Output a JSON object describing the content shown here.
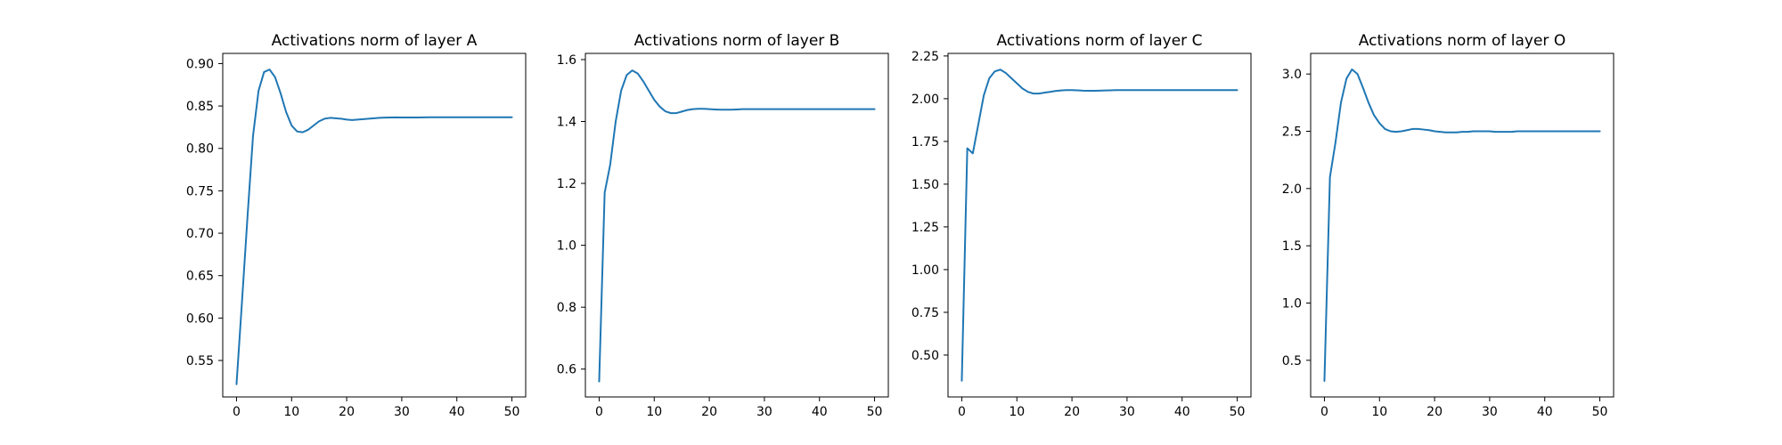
{
  "chart_data": [
    {
      "type": "line",
      "title": "Activations norm of layer A",
      "xlabel": "",
      "ylabel": "",
      "xlim": [
        -2.5,
        52.5
      ],
      "ylim": [
        0.507,
        0.912
      ],
      "xticks": [
        0,
        10,
        20,
        30,
        40,
        50
      ],
      "yticks": [
        0.55,
        0.6,
        0.65,
        0.7,
        0.75,
        0.8,
        0.85,
        0.9
      ],
      "ytick_labels": [
        "0.55",
        "0.60",
        "0.65",
        "0.70",
        "0.75",
        "0.80",
        "0.85",
        "0.90"
      ],
      "grid": false,
      "series": [
        {
          "color": "#1f77b4",
          "x": [
            0,
            1,
            2,
            3,
            4,
            5,
            6,
            7,
            8,
            9,
            10,
            11,
            12,
            13,
            14,
            15,
            16,
            17,
            18,
            19,
            20,
            21,
            22,
            23,
            24,
            25,
            26,
            27,
            28,
            29,
            30,
            31,
            32,
            33,
            34,
            35,
            36,
            37,
            38,
            39,
            40,
            41,
            42,
            43,
            44,
            45,
            46,
            47,
            48,
            49,
            50
          ],
          "y": [
            0.522,
            0.62,
            0.72,
            0.815,
            0.868,
            0.89,
            0.893,
            0.884,
            0.865,
            0.843,
            0.827,
            0.82,
            0.819,
            0.822,
            0.827,
            0.832,
            0.835,
            0.836,
            0.8355,
            0.835,
            0.834,
            0.8335,
            0.834,
            0.8345,
            0.835,
            0.8355,
            0.836,
            0.8363,
            0.8365,
            0.8366,
            0.8365,
            0.8364,
            0.8364,
            0.8365,
            0.8366,
            0.8367,
            0.8367,
            0.8367,
            0.8367,
            0.8367,
            0.8367,
            0.8367,
            0.8367,
            0.8367,
            0.8367,
            0.8367,
            0.8367,
            0.8367,
            0.8367,
            0.8367,
            0.8367
          ]
        }
      ]
    },
    {
      "type": "line",
      "title": "Activations norm of layer B",
      "xlabel": "",
      "ylabel": "",
      "xlim": [
        -2.5,
        52.5
      ],
      "ylim": [
        0.51,
        1.62
      ],
      "xticks": [
        0,
        10,
        20,
        30,
        40,
        50
      ],
      "yticks": [
        0.6,
        0.8,
        1.0,
        1.2,
        1.4,
        1.6
      ],
      "ytick_labels": [
        "0.6",
        "0.8",
        "1.0",
        "1.2",
        "1.4",
        "1.6"
      ],
      "grid": false,
      "series": [
        {
          "color": "#1f77b4",
          "x": [
            0,
            1,
            2,
            3,
            4,
            5,
            6,
            7,
            8,
            9,
            10,
            11,
            12,
            13,
            14,
            15,
            16,
            17,
            18,
            19,
            20,
            21,
            22,
            23,
            24,
            25,
            26,
            27,
            28,
            29,
            30,
            31,
            32,
            33,
            34,
            35,
            36,
            37,
            38,
            39,
            40,
            41,
            42,
            43,
            44,
            45,
            46,
            47,
            48,
            49,
            50
          ],
          "y": [
            0.56,
            1.17,
            1.26,
            1.4,
            1.5,
            1.55,
            1.565,
            1.555,
            1.53,
            1.5,
            1.47,
            1.448,
            1.433,
            1.427,
            1.427,
            1.432,
            1.437,
            1.44,
            1.441,
            1.441,
            1.44,
            1.439,
            1.438,
            1.438,
            1.438,
            1.439,
            1.44,
            1.44,
            1.44,
            1.44,
            1.44,
            1.44,
            1.44,
            1.44,
            1.44,
            1.44,
            1.44,
            1.44,
            1.44,
            1.44,
            1.44,
            1.44,
            1.44,
            1.44,
            1.44,
            1.44,
            1.44,
            1.44,
            1.44,
            1.44,
            1.44
          ]
        }
      ]
    },
    {
      "type": "line",
      "title": "Activations norm of layer C",
      "xlabel": "",
      "ylabel": "",
      "xlim": [
        -2.5,
        52.5
      ],
      "ylim": [
        0.255,
        2.265
      ],
      "xticks": [
        0,
        10,
        20,
        30,
        40,
        50
      ],
      "yticks": [
        0.5,
        0.75,
        1.0,
        1.25,
        1.5,
        1.75,
        2.0,
        2.25
      ],
      "ytick_labels": [
        "0.50",
        "0.75",
        "1.00",
        "1.25",
        "1.50",
        "1.75",
        "2.00",
        "2.25"
      ],
      "grid": false,
      "series": [
        {
          "color": "#1f77b4",
          "x": [
            0,
            1,
            2,
            3,
            4,
            5,
            6,
            7,
            8,
            9,
            10,
            11,
            12,
            13,
            14,
            15,
            16,
            17,
            18,
            19,
            20,
            21,
            22,
            23,
            24,
            25,
            26,
            27,
            28,
            29,
            30,
            31,
            32,
            33,
            34,
            35,
            36,
            37,
            38,
            39,
            40,
            41,
            42,
            43,
            44,
            45,
            46,
            47,
            48,
            49,
            50
          ],
          "y": [
            0.35,
            1.71,
            1.68,
            1.85,
            2.02,
            2.12,
            2.16,
            2.17,
            2.15,
            2.12,
            2.09,
            2.06,
            2.04,
            2.03,
            2.03,
            2.035,
            2.04,
            2.045,
            2.048,
            2.05,
            2.05,
            2.049,
            2.047,
            2.046,
            2.046,
            2.047,
            2.048,
            2.049,
            2.05,
            2.05,
            2.05,
            2.05,
            2.05,
            2.05,
            2.05,
            2.05,
            2.05,
            2.05,
            2.05,
            2.05,
            2.05,
            2.05,
            2.05,
            2.05,
            2.05,
            2.05,
            2.05,
            2.05,
            2.05,
            2.05,
            2.05
          ]
        }
      ]
    },
    {
      "type": "line",
      "title": "Activations norm of layer O",
      "xlabel": "",
      "ylabel": "",
      "xlim": [
        -2.5,
        52.5
      ],
      "ylim": [
        0.18,
        3.18
      ],
      "xticks": [
        0,
        10,
        20,
        30,
        40,
        50
      ],
      "yticks": [
        0.5,
        1.0,
        1.5,
        2.0,
        2.5,
        3.0
      ],
      "ytick_labels": [
        "0.5",
        "1.0",
        "1.5",
        "2.0",
        "2.5",
        "3.0"
      ],
      "grid": false,
      "series": [
        {
          "color": "#1f77b4",
          "x": [
            0,
            1,
            2,
            3,
            4,
            5,
            6,
            7,
            8,
            9,
            10,
            11,
            12,
            13,
            14,
            15,
            16,
            17,
            18,
            19,
            20,
            21,
            22,
            23,
            24,
            25,
            26,
            27,
            28,
            29,
            30,
            31,
            32,
            33,
            34,
            35,
            36,
            37,
            38,
            39,
            40,
            41,
            42,
            43,
            44,
            45,
            46,
            47,
            48,
            49,
            50
          ],
          "y": [
            0.32,
            2.1,
            2.4,
            2.75,
            2.96,
            3.04,
            3.0,
            2.88,
            2.75,
            2.64,
            2.57,
            2.52,
            2.5,
            2.495,
            2.5,
            2.51,
            2.52,
            2.52,
            2.515,
            2.51,
            2.5,
            2.495,
            2.49,
            2.49,
            2.49,
            2.495,
            2.495,
            2.5,
            2.5,
            2.5,
            2.5,
            2.495,
            2.495,
            2.495,
            2.495,
            2.5,
            2.5,
            2.5,
            2.5,
            2.5,
            2.5,
            2.5,
            2.5,
            2.5,
            2.5,
            2.5,
            2.5,
            2.5,
            2.5,
            2.5,
            2.5
          ]
        }
      ]
    }
  ]
}
